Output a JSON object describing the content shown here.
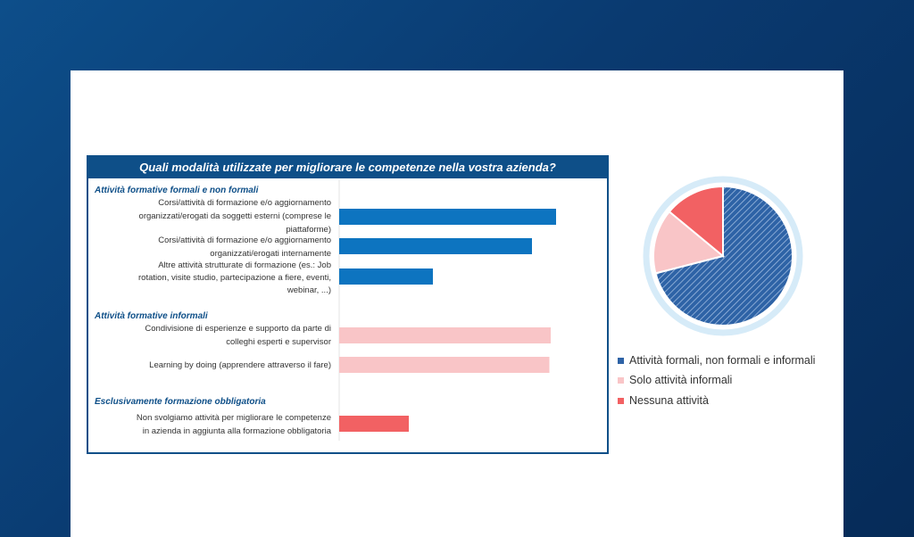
{
  "chart_data": [
    {
      "type": "bar",
      "orientation": "horizontal",
      "title": "Quali modalità utilizzate per migliorare le competenze nella vostra azienda?",
      "groups": [
        {
          "label": "Attività formative formali e non formali",
          "color": "#0d74c0",
          "items": [
            {
              "label": "Corsi/attività di formazione e/o aggiornamento organizzati/erogati da soggetti esterni (comprese le piattaforme)",
              "value": 81
            },
            {
              "label": "Corsi/attività di formazione e/o aggiornamento organizzati/erogati internamente",
              "value": 72
            },
            {
              "label": "Altre attività strutturate di formazione (es.: Job rotation, visite studio, partecipazione a fiere, eventi, webinar, ...)",
              "value": 35
            }
          ]
        },
        {
          "label": "Attività formative informali",
          "color": "#f9c5c7",
          "items": [
            {
              "label": "Condivisione di esperienze e supporto da parte di colleghi esperti e supervisor",
              "value": 79
            },
            {
              "label": "Learning by doing (apprendere attraverso il fare)",
              "value": 78.5
            }
          ]
        },
        {
          "label": "Esclusivamente formazione obbligatoria",
          "color": "#f26163",
          "items": [
            {
              "label": "Non svolgiamo attività per migliorare le competenze in azienda in aggiunta alla formazione obbligatoria",
              "value": 26
            }
          ]
        }
      ],
      "xlim": [
        0,
        100
      ],
      "xlabel": "",
      "ylabel": ""
    },
    {
      "type": "pie",
      "slices": [
        {
          "label": "Attività formali, non formali e informali",
          "value": 71,
          "color": "#2e63a6",
          "pattern": "hatched"
        },
        {
          "label": "Solo attività informali",
          "value": 15,
          "color": "#f9c5c7"
        },
        {
          "label": "Nessuna attività",
          "value": 14,
          "color": "#f26163"
        }
      ],
      "legend_position": "bottom"
    }
  ]
}
